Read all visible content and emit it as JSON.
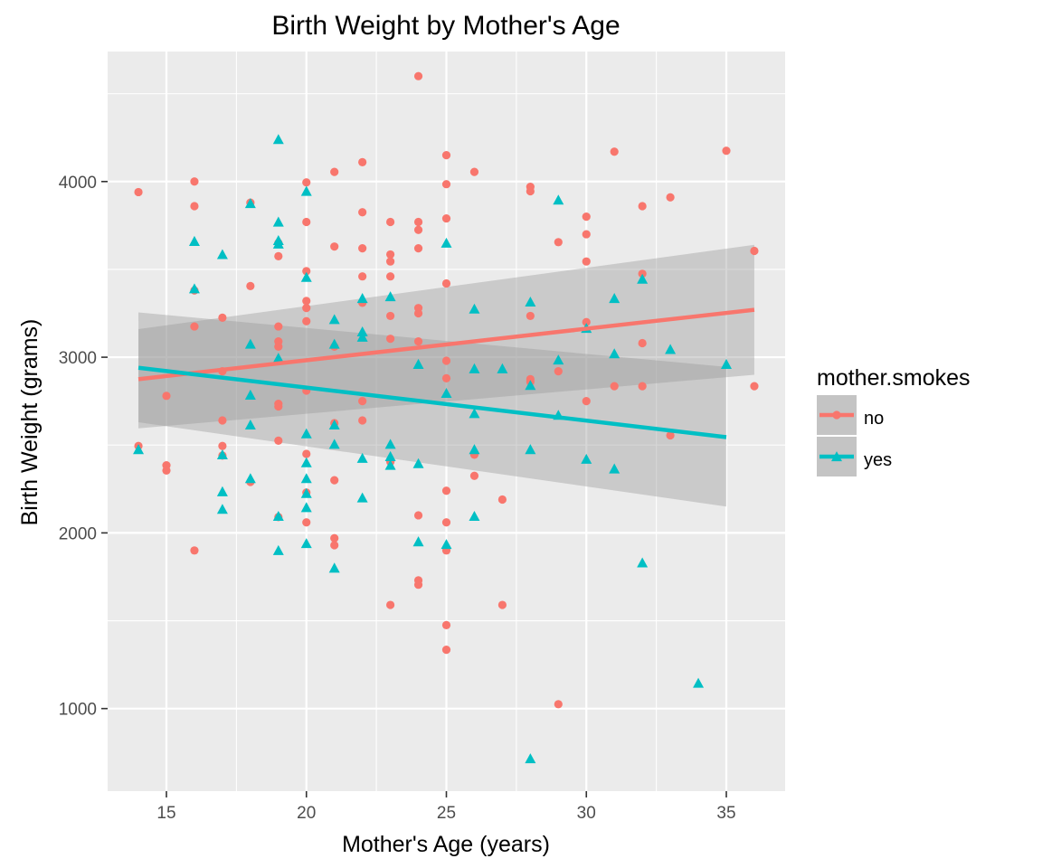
{
  "chart_data": {
    "type": "scatter",
    "title": "Birth Weight by Mother's Age",
    "xlabel": "Mother's Age (years)",
    "ylabel": "Birth Weight (grams)",
    "xlim": [
      12.9,
      37.1
    ],
    "ylim": [
      530,
      4740
    ],
    "x_ticks": [
      15,
      20,
      25,
      30,
      35
    ],
    "y_ticks": [
      1000,
      2000,
      3000,
      4000
    ],
    "x_tick_labels": [
      "15",
      "20",
      "25",
      "30",
      "35"
    ],
    "y_tick_labels": [
      "1000",
      "2000",
      "3000",
      "4000"
    ],
    "grid": true,
    "legend": {
      "title": "mother.smokes",
      "position": "right"
    },
    "series": [
      {
        "name": "no",
        "color": "#F8766D",
        "marker": "circle",
        "points": [
          [
            14,
            3940
          ],
          [
            14,
            2495
          ],
          [
            15,
            2780
          ],
          [
            15,
            2385
          ],
          [
            15,
            2355
          ],
          [
            16,
            4000
          ],
          [
            16,
            3860
          ],
          [
            16,
            3380
          ],
          [
            16,
            3175
          ],
          [
            16,
            1900
          ],
          [
            17,
            3225
          ],
          [
            17,
            2920
          ],
          [
            17,
            2640
          ],
          [
            17,
            2495
          ],
          [
            17,
            2440
          ],
          [
            18,
            3880
          ],
          [
            18,
            3405
          ],
          [
            18,
            2290
          ],
          [
            19,
            3650
          ],
          [
            19,
            3575
          ],
          [
            19,
            3175
          ],
          [
            19,
            3090
          ],
          [
            19,
            3060
          ],
          [
            19,
            2735
          ],
          [
            19,
            2720
          ],
          [
            19,
            2525
          ],
          [
            19,
            2090
          ],
          [
            20,
            3995
          ],
          [
            20,
            3770
          ],
          [
            20,
            3490
          ],
          [
            20,
            3320
          ],
          [
            20,
            3280
          ],
          [
            20,
            3205
          ],
          [
            20,
            2810
          ],
          [
            20,
            2450
          ],
          [
            20,
            2230
          ],
          [
            20,
            2060
          ],
          [
            21,
            4055
          ],
          [
            21,
            3630
          ],
          [
            21,
            3060
          ],
          [
            21,
            2625
          ],
          [
            21,
            2300
          ],
          [
            21,
            1970
          ],
          [
            21,
            1930
          ],
          [
            22,
            4110
          ],
          [
            22,
            3825
          ],
          [
            22,
            3620
          ],
          [
            22,
            3460
          ],
          [
            22,
            3310
          ],
          [
            22,
            2750
          ],
          [
            22,
            2640
          ],
          [
            23,
            3770
          ],
          [
            23,
            3585
          ],
          [
            23,
            3545
          ],
          [
            23,
            3460
          ],
          [
            23,
            3235
          ],
          [
            23,
            3105
          ],
          [
            23,
            2405
          ],
          [
            23,
            1590
          ],
          [
            24,
            4600
          ],
          [
            24,
            3770
          ],
          [
            24,
            3725
          ],
          [
            24,
            3620
          ],
          [
            24,
            3280
          ],
          [
            24,
            3250
          ],
          [
            24,
            3090
          ],
          [
            24,
            2100
          ],
          [
            24,
            1730
          ],
          [
            24,
            1705
          ],
          [
            25,
            4150
          ],
          [
            25,
            3985
          ],
          [
            25,
            3790
          ],
          [
            25,
            3420
          ],
          [
            25,
            2980
          ],
          [
            25,
            2880
          ],
          [
            25,
            2240
          ],
          [
            25,
            2060
          ],
          [
            25,
            1900
          ],
          [
            25,
            1475
          ],
          [
            25,
            1335
          ],
          [
            26,
            4055
          ],
          [
            26,
            2445
          ],
          [
            26,
            2325
          ],
          [
            27,
            2190
          ],
          [
            27,
            1590
          ],
          [
            28,
            3970
          ],
          [
            28,
            3945
          ],
          [
            28,
            3235
          ],
          [
            28,
            2875
          ],
          [
            28,
            2860
          ],
          [
            29,
            3655
          ],
          [
            29,
            2920
          ],
          [
            29,
            1025
          ],
          [
            30,
            3800
          ],
          [
            30,
            3700
          ],
          [
            30,
            3545
          ],
          [
            30,
            3200
          ],
          [
            30,
            2750
          ],
          [
            31,
            4170
          ],
          [
            31,
            2835
          ],
          [
            32,
            3860
          ],
          [
            32,
            3475
          ],
          [
            32,
            3080
          ],
          [
            32,
            2835
          ],
          [
            33,
            3910
          ],
          [
            33,
            2555
          ],
          [
            35,
            4175
          ],
          [
            36,
            3605
          ],
          [
            36,
            2835
          ]
        ],
        "fit": {
          "x": [
            14,
            36
          ],
          "y": [
            2875,
            3270
          ],
          "ci_lower": [
            2595,
            2900
          ],
          "ci_upper": [
            3160,
            3640
          ]
        }
      },
      {
        "name": "yes",
        "color": "#00BFC4",
        "marker": "triangle",
        "points": [
          [
            14,
            2470
          ],
          [
            16,
            3655
          ],
          [
            16,
            3385
          ],
          [
            17,
            3580
          ],
          [
            17,
            2440
          ],
          [
            17,
            2230
          ],
          [
            17,
            2130
          ],
          [
            18,
            3870
          ],
          [
            18,
            3070
          ],
          [
            18,
            2780
          ],
          [
            18,
            2610
          ],
          [
            18,
            2305
          ],
          [
            19,
            4235
          ],
          [
            19,
            3765
          ],
          [
            19,
            3660
          ],
          [
            19,
            3640
          ],
          [
            19,
            2990
          ],
          [
            19,
            2090
          ],
          [
            19,
            1895
          ],
          [
            20,
            3940
          ],
          [
            20,
            3450
          ],
          [
            20,
            2560
          ],
          [
            20,
            2395
          ],
          [
            20,
            2305
          ],
          [
            20,
            2220
          ],
          [
            20,
            2140
          ],
          [
            20,
            1935
          ],
          [
            21,
            3210
          ],
          [
            21,
            3070
          ],
          [
            21,
            2610
          ],
          [
            21,
            2500
          ],
          [
            21,
            1795
          ],
          [
            22,
            3330
          ],
          [
            22,
            3140
          ],
          [
            22,
            3110
          ],
          [
            22,
            2420
          ],
          [
            22,
            2195
          ],
          [
            23,
            3340
          ],
          [
            23,
            2500
          ],
          [
            23,
            2430
          ],
          [
            23,
            2380
          ],
          [
            24,
            2955
          ],
          [
            24,
            2390
          ],
          [
            24,
            1945
          ],
          [
            25,
            3645
          ],
          [
            25,
            2790
          ],
          [
            25,
            1930
          ],
          [
            26,
            3270
          ],
          [
            26,
            2930
          ],
          [
            26,
            2675
          ],
          [
            26,
            2470
          ],
          [
            26,
            2090
          ],
          [
            27,
            2930
          ],
          [
            28,
            3310
          ],
          [
            28,
            2835
          ],
          [
            28,
            2470
          ],
          [
            28,
            710
          ],
          [
            29,
            3890
          ],
          [
            29,
            2980
          ],
          [
            29,
            2665
          ],
          [
            30,
            3160
          ],
          [
            30,
            2415
          ],
          [
            31,
            3330
          ],
          [
            31,
            3015
          ],
          [
            31,
            2360
          ],
          [
            32,
            3440
          ],
          [
            32,
            1825
          ],
          [
            33,
            3040
          ],
          [
            34,
            1140
          ],
          [
            35,
            2955
          ]
        ],
        "fit": {
          "x": [
            14,
            35
          ],
          "y": [
            2940,
            2545
          ],
          "ci_lower": [
            2630,
            2150
          ],
          "ci_upper": [
            3255,
            2945
          ]
        }
      }
    ]
  }
}
